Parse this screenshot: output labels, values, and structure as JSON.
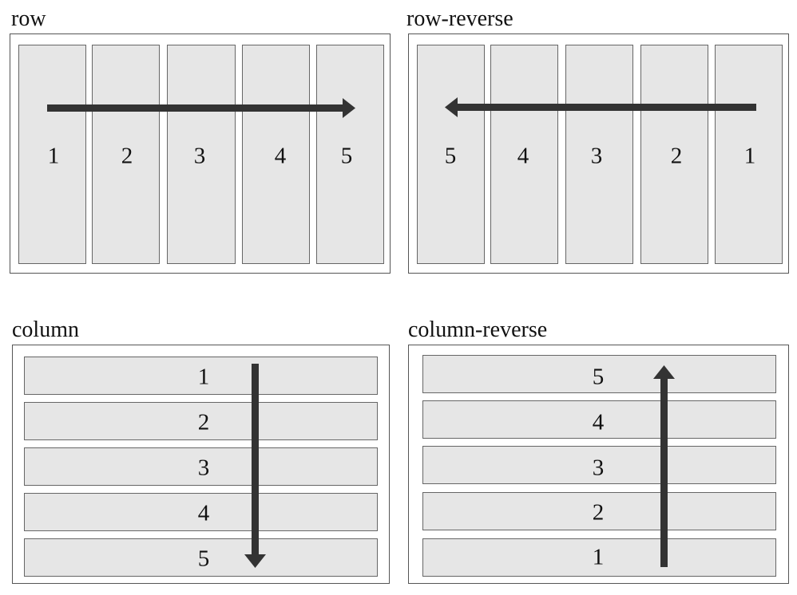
{
  "panels": [
    {
      "title": "row",
      "items": [
        "1",
        "2",
        "3",
        "4",
        "5"
      ]
    },
    {
      "title": "row-reverse",
      "items": [
        "5",
        "4",
        "3",
        "2",
        "1"
      ]
    },
    {
      "title": "column",
      "items": [
        "1",
        "2",
        "3",
        "4",
        "5"
      ]
    },
    {
      "title": "column-reverse",
      "items": [
        "5",
        "4",
        "3",
        "2",
        "1"
      ]
    }
  ],
  "colors": {
    "item_fill": "#e6e6e6",
    "item_border": "#666666",
    "arrow": "#333333"
  }
}
